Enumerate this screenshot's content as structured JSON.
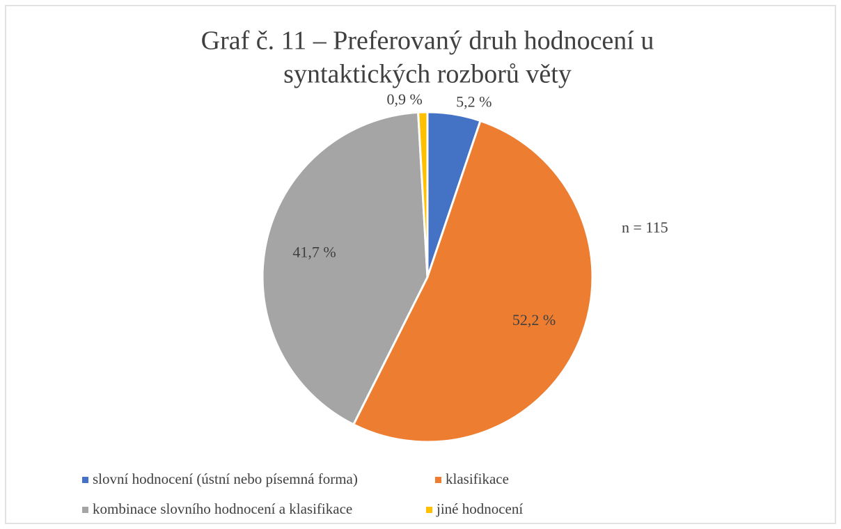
{
  "chart_data": {
    "type": "pie",
    "title": [
      "Graf č. 11 – Preferovaný druh hodnocení u",
      "syntaktických rozborů věty"
    ],
    "categories": [
      "slovní hodnocení (ústní nebo písemná forma)",
      "klasifikace",
      "kombinace slovního hodnocení a klasifikace",
      "jiné hodnocení"
    ],
    "values": [
      5.2,
      52.2,
      41.7,
      0.9
    ],
    "value_labels": [
      "5,2 %",
      "52,2 %",
      "41,7 %",
      "0,9 %"
    ],
    "colors": [
      "#4472c4",
      "#ed7d31",
      "#a5a5a5",
      "#ffc000"
    ],
    "annotation": "n = 115",
    "legend": "bottom"
  }
}
